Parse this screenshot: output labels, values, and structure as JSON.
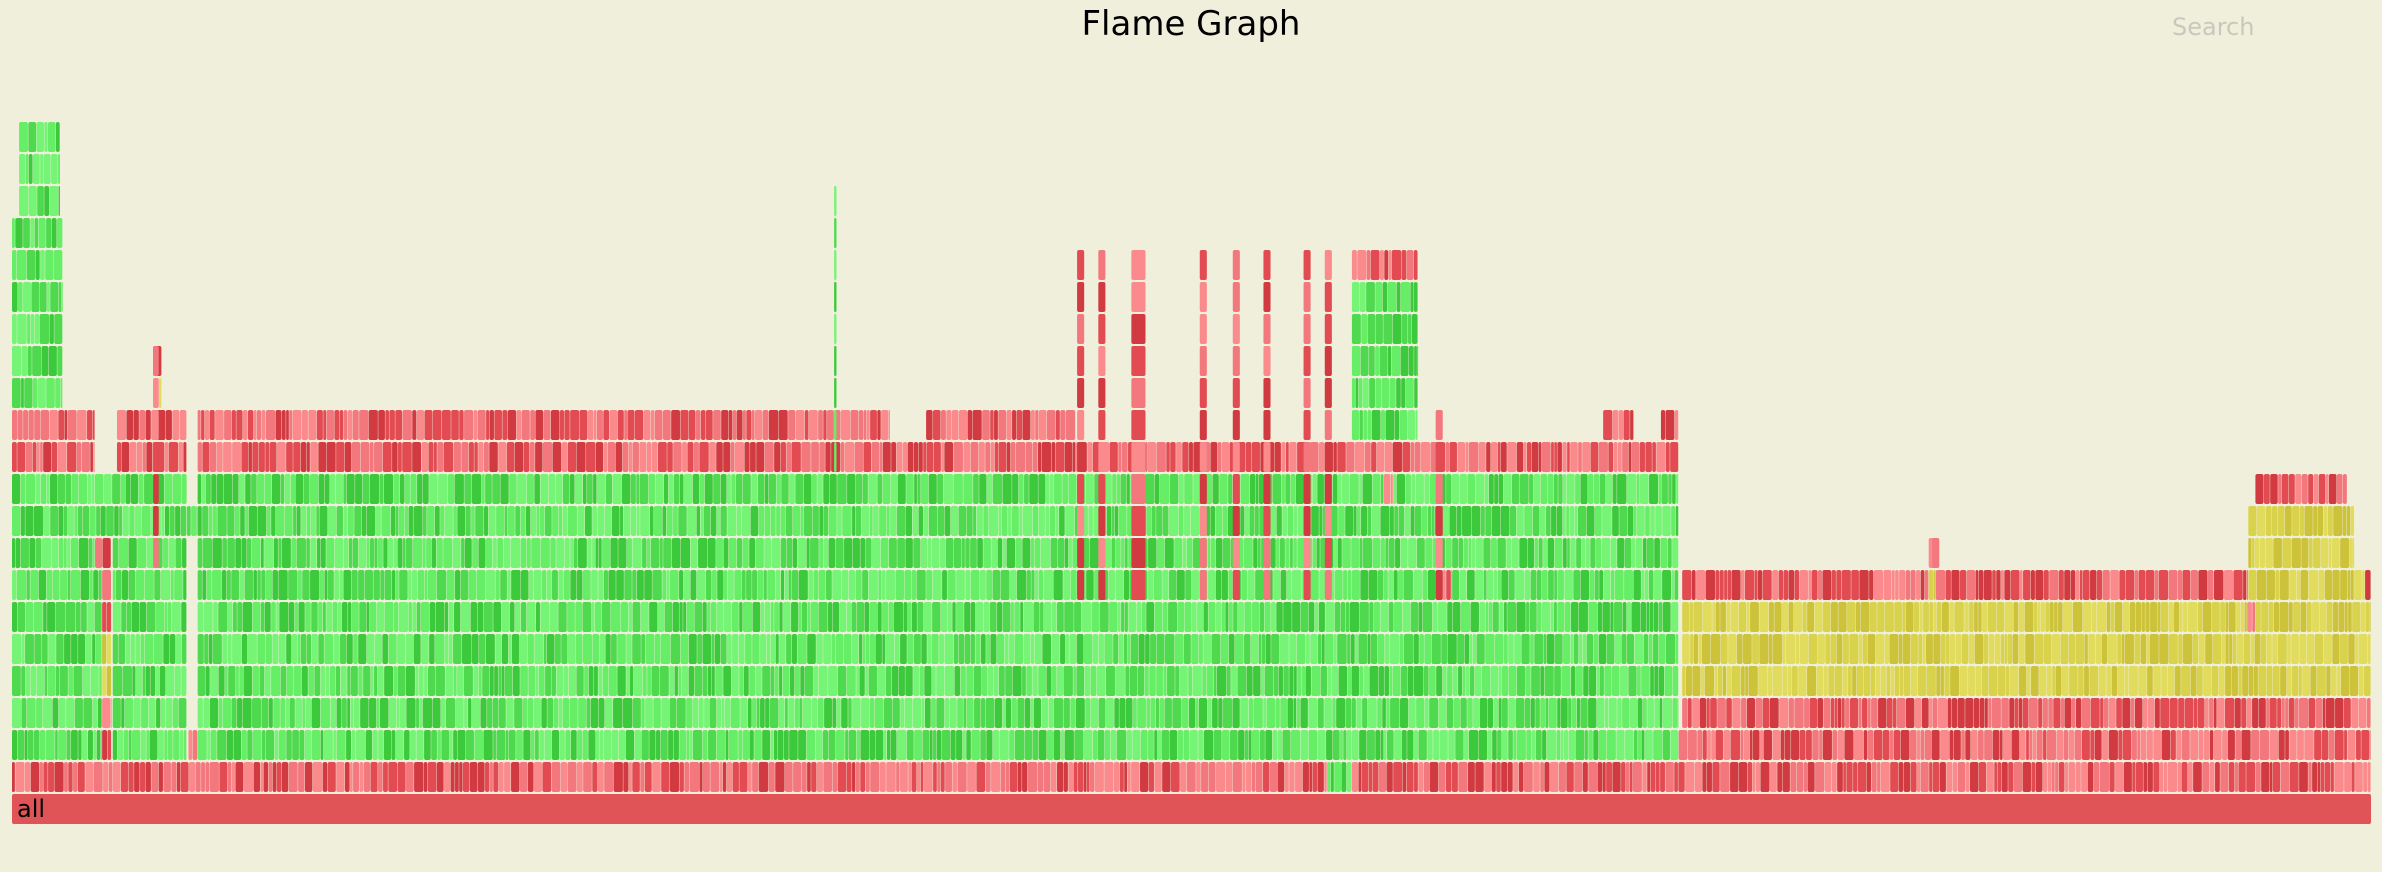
{
  "chart_data": {
    "type": "flamegraph",
    "title": "Flame Graph",
    "root_label": "all",
    "colors": {
      "background": "#f0efdc",
      "root": "#e05458",
      "red_family": [
        "#e24b52",
        "#f3787d",
        "#d13a40",
        "#fa8a8c"
      ],
      "green_family": [
        "#4fd94f",
        "#66ee66",
        "#3cc93c",
        "#76f476"
      ],
      "yellow_family": [
        "#d9d24c",
        "#e2dc5e",
        "#cdc33a"
      ]
    },
    "depth_bands": [
      {
        "depth": 0,
        "segments": [
          {
            "start": 0,
            "end": 1,
            "color": "root"
          }
        ]
      },
      {
        "depth": 1,
        "segments": [
          {
            "start": 0,
            "end": 0.5575,
            "color": "red"
          },
          {
            "start": 0.5575,
            "end": 0.568,
            "color": "green"
          },
          {
            "start": 0.568,
            "end": 1,
            "color": "red"
          }
        ]
      },
      {
        "depth": 2,
        "segments": [
          {
            "start": 0,
            "end": 0.0382,
            "color": "green"
          },
          {
            "start": 0.0382,
            "end": 0.0422,
            "color": "red"
          },
          {
            "start": 0.0427,
            "end": 0.0741,
            "color": "green"
          },
          {
            "start": 0.0748,
            "end": 0.0787,
            "color": "red"
          },
          {
            "start": 0.0787,
            "end": 0.7065,
            "color": "green"
          },
          {
            "start": 0.7065,
            "end": 1,
            "color": "red"
          }
        ]
      },
      {
        "depth": 3,
        "segments": [
          {
            "start": 0,
            "end": 0.0382,
            "color": "green"
          },
          {
            "start": 0.0382,
            "end": 0.0422,
            "color": "red"
          },
          {
            "start": 0.0427,
            "end": 0.0741,
            "color": "green"
          },
          {
            "start": 0.0787,
            "end": 0.7065,
            "color": "green"
          },
          {
            "start": 0.708,
            "end": 1,
            "color": "red"
          }
        ]
      },
      {
        "depth": 4,
        "segments": [
          {
            "start": 0,
            "end": 0.0382,
            "color": "green"
          },
          {
            "start": 0.0382,
            "end": 0.0422,
            "color": "yellow"
          },
          {
            "start": 0.0427,
            "end": 0.0741,
            "color": "green"
          },
          {
            "start": 0.0787,
            "end": 0.7065,
            "color": "green"
          },
          {
            "start": 0.708,
            "end": 1,
            "color": "yellow"
          }
        ]
      },
      {
        "depth": 5,
        "segments": [
          {
            "start": 0,
            "end": 0.0382,
            "color": "green"
          },
          {
            "start": 0.0382,
            "end": 0.0422,
            "color": "yellow"
          },
          {
            "start": 0.0427,
            "end": 0.0741,
            "color": "green"
          },
          {
            "start": 0.0787,
            "end": 0.7065,
            "color": "green"
          },
          {
            "start": 0.708,
            "end": 1,
            "color": "yellow"
          }
        ]
      },
      {
        "depth": 6,
        "segments": [
          {
            "start": 0,
            "end": 0.0382,
            "color": "green"
          },
          {
            "start": 0.0382,
            "end": 0.0422,
            "color": "red"
          },
          {
            "start": 0.0427,
            "end": 0.0741,
            "color": "green"
          },
          {
            "start": 0.0787,
            "end": 0.7065,
            "color": "green"
          },
          {
            "start": 0.708,
            "end": 0.9475,
            "color": "yellow"
          },
          {
            "start": 0.9475,
            "end": 0.951,
            "color": "red"
          },
          {
            "start": 0.951,
            "end": 1,
            "color": "yellow"
          }
        ]
      },
      {
        "depth": 7,
        "segments": [
          {
            "start": 0,
            "end": 0.0382,
            "color": "green"
          },
          {
            "start": 0.0382,
            "end": 0.0422,
            "color": "red"
          },
          {
            "start": 0.0427,
            "end": 0.0741,
            "color": "green"
          },
          {
            "start": 0.0787,
            "end": 0.6065,
            "color": "green"
          },
          {
            "start": 0.6065,
            "end": 0.6105,
            "color": "red"
          },
          {
            "start": 0.6105,
            "end": 0.7065,
            "color": "green"
          },
          {
            "start": 0.708,
            "end": 0.8125,
            "color": "red"
          },
          {
            "start": 0.8125,
            "end": 0.8155,
            "color": "yellow"
          },
          {
            "start": 0.8155,
            "end": 0.948,
            "color": "red"
          },
          {
            "start": 0.948,
            "end": 0.9975,
            "color": "yellow"
          },
          {
            "start": 0.9975,
            "end": 1,
            "color": "red"
          }
        ]
      },
      {
        "depth": 8,
        "segments": [
          {
            "start": 0,
            "end": 0.0352,
            "color": "green"
          },
          {
            "start": 0.0352,
            "end": 0.0422,
            "color": "red"
          },
          {
            "start": 0.0427,
            "end": 0.0741,
            "color": "green"
          },
          {
            "start": 0.0787,
            "end": 0.7065,
            "color": "green"
          },
          {
            "start": 0.8125,
            "end": 0.8155,
            "color": "red"
          },
          {
            "start": 0.948,
            "end": 0.993,
            "color": "yellow"
          }
        ]
      },
      {
        "depth": 9,
        "segments": [
          {
            "start": 0,
            "end": 0.0742,
            "color": "green"
          },
          {
            "start": 0.0742,
            "end": 0.0787,
            "color": "green"
          },
          {
            "start": 0.0787,
            "end": 0.7065,
            "color": "green"
          },
          {
            "start": 0.948,
            "end": 0.993,
            "color": "yellow"
          }
        ]
      },
      {
        "depth": 10,
        "segments": [
          {
            "start": 0,
            "end": 0.0742,
            "color": "green"
          },
          {
            "start": 0.0787,
            "end": 0.5815,
            "color": "green"
          },
          {
            "start": 0.5815,
            "end": 0.5855,
            "color": "red"
          },
          {
            "start": 0.5855,
            "end": 0.7065,
            "color": "green"
          },
          {
            "start": 0.951,
            "end": 0.99,
            "color": "red"
          }
        ]
      },
      {
        "depth": 11,
        "segments": [
          {
            "start": 0,
            "end": 0.0352,
            "color": "red"
          },
          {
            "start": 0.0445,
            "end": 0.0741,
            "color": "red"
          },
          {
            "start": 0.0787,
            "end": 0.451,
            "color": "red"
          },
          {
            "start": 0.451,
            "end": 0.4812,
            "color": "red"
          },
          {
            "start": 0.4812,
            "end": 0.7065,
            "color": "red"
          }
        ]
      },
      {
        "depth": 12,
        "segments": [
          {
            "start": 0,
            "end": 0.0352,
            "color": "red"
          },
          {
            "start": 0.0445,
            "end": 0.0741,
            "color": "red"
          },
          {
            "start": 0.0787,
            "end": 0.372,
            "color": "red"
          },
          {
            "start": 0.3875,
            "end": 0.451,
            "color": "red"
          },
          {
            "start": 0.568,
            "end": 0.596,
            "color": "green"
          },
          {
            "start": 0.6745,
            "end": 0.6875,
            "color": "red"
          },
          {
            "start": 0.699,
            "end": 0.7065,
            "color": "red"
          }
        ]
      },
      {
        "depth": 13,
        "segments": [
          {
            "start": 0,
            "end": 0.0215,
            "color": "green"
          },
          {
            "start": 0.0598,
            "end": 0.0635,
            "color": "yellow"
          },
          {
            "start": 0.568,
            "end": 0.596,
            "color": "green"
          }
        ]
      },
      {
        "depth": 14,
        "segments": [
          {
            "start": 0,
            "end": 0.0215,
            "color": "green"
          },
          {
            "start": 0.0598,
            "end": 0.0635,
            "color": "red"
          },
          {
            "start": 0.568,
            "end": 0.596,
            "color": "green"
          }
        ]
      },
      {
        "depth": 15,
        "segments": [
          {
            "start": 0,
            "end": 0.0215,
            "color": "green"
          },
          {
            "start": 0.568,
            "end": 0.596,
            "color": "green"
          }
        ]
      },
      {
        "depth": 16,
        "segments": [
          {
            "start": 0,
            "end": 0.0215,
            "color": "green"
          },
          {
            "start": 0.568,
            "end": 0.596,
            "color": "green"
          }
        ]
      },
      {
        "depth": 17,
        "segments": [
          {
            "start": 0,
            "end": 0.0215,
            "color": "green"
          },
          {
            "start": 0.568,
            "end": 0.596,
            "color": "red"
          }
        ]
      },
      {
        "depth": 18,
        "segments": [
          {
            "start": 0,
            "end": 0.0215,
            "color": "green"
          }
        ]
      },
      {
        "depth": 19,
        "segments": [
          {
            "start": 0.003,
            "end": 0.0205,
            "color": "green"
          }
        ]
      },
      {
        "depth": 20,
        "segments": [
          {
            "start": 0.003,
            "end": 0.0205,
            "color": "green"
          }
        ]
      },
      {
        "depth": 21,
        "segments": [
          {
            "start": 0.003,
            "end": 0.0205,
            "color": "green"
          }
        ]
      }
    ],
    "thin_towers": [
      {
        "start": 0.3485,
        "end": 0.3495,
        "min_depth": 11,
        "max_depth": 19,
        "color": "green"
      },
      {
        "start": 0.0598,
        "end": 0.0622,
        "min_depth": 8,
        "max_depth": 14,
        "color": "red"
      },
      {
        "start": 0.4515,
        "end": 0.4545,
        "min_depth": 7,
        "max_depth": 17,
        "color": "red"
      },
      {
        "start": 0.4605,
        "end": 0.4635,
        "min_depth": 7,
        "max_depth": 17,
        "color": "red"
      },
      {
        "start": 0.4745,
        "end": 0.4805,
        "min_depth": 7,
        "max_depth": 17,
        "color": "red"
      },
      {
        "start": 0.5035,
        "end": 0.5065,
        "min_depth": 7,
        "max_depth": 17,
        "color": "red"
      },
      {
        "start": 0.5175,
        "end": 0.5205,
        "min_depth": 7,
        "max_depth": 17,
        "color": "red"
      },
      {
        "start": 0.5305,
        "end": 0.5335,
        "min_depth": 7,
        "max_depth": 17,
        "color": "red"
      },
      {
        "start": 0.5475,
        "end": 0.5505,
        "min_depth": 7,
        "max_depth": 17,
        "color": "red"
      },
      {
        "start": 0.5565,
        "end": 0.5595,
        "min_depth": 7,
        "max_depth": 17,
        "color": "red"
      },
      {
        "start": 0.6035,
        "end": 0.6065,
        "min_depth": 7,
        "max_depth": 12,
        "color": "red"
      },
      {
        "start": 0.814,
        "end": 0.817,
        "min_depth": 8,
        "max_depth": 8,
        "color": "red"
      }
    ]
  },
  "search": {
    "label": "Search"
  }
}
